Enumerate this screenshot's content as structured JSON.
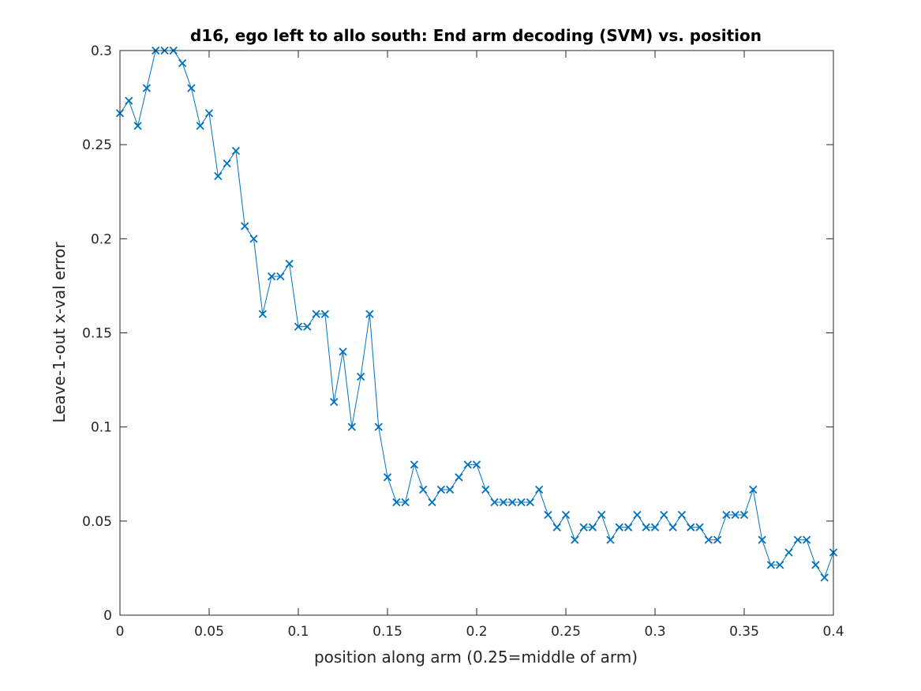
{
  "chart_data": {
    "type": "line",
    "title": "d16, ego left to allo south: End arm decoding (SVM) vs. position",
    "xlabel": "position along arm (0.25=middle of arm)",
    "ylabel": "Leave-1-out x-val error",
    "xlim": [
      0,
      0.4
    ],
    "ylim": [
      0,
      0.3
    ],
    "xticks": [
      0,
      0.05,
      0.1,
      0.15,
      0.2,
      0.25,
      0.3,
      0.35,
      0.4
    ],
    "xtick_labels": [
      "0",
      "0.05",
      "0.1",
      "0.15",
      "0.2",
      "0.25",
      "0.3",
      "0.35",
      "0.4"
    ],
    "yticks": [
      0,
      0.05,
      0.1,
      0.15,
      0.2,
      0.25,
      0.3
    ],
    "ytick_labels": [
      "0",
      "0.05",
      "0.1",
      "0.15",
      "0.2",
      "0.25",
      "0.3"
    ],
    "grid": false,
    "marker": "x",
    "color": "#0072BD",
    "series": [
      {
        "x": [
          0,
          0.005,
          0.01,
          0.015,
          0.02,
          0.025,
          0.03,
          0.035,
          0.04,
          0.045,
          0.05,
          0.055,
          0.06,
          0.065,
          0.07,
          0.075,
          0.08,
          0.085,
          0.09,
          0.095,
          0.1,
          0.105,
          0.11,
          0.115,
          0.12,
          0.125,
          0.13,
          0.135,
          0.14,
          0.145,
          0.15,
          0.155,
          0.16,
          0.165,
          0.17,
          0.175,
          0.18,
          0.185,
          0.19,
          0.195,
          0.2,
          0.205,
          0.21,
          0.215,
          0.22,
          0.225,
          0.23,
          0.235,
          0.24,
          0.245,
          0.25,
          0.255,
          0.26,
          0.265,
          0.27,
          0.275,
          0.28,
          0.285,
          0.29,
          0.295,
          0.3,
          0.305,
          0.31,
          0.315,
          0.32,
          0.325,
          0.33,
          0.335,
          0.34,
          0.345,
          0.35,
          0.355,
          0.36,
          0.365,
          0.37,
          0.375,
          0.38,
          0.385,
          0.39,
          0.395,
          0.4
        ],
        "y": [
          0.2667,
          0.2733,
          0.26,
          0.28,
          0.3,
          0.3,
          0.3,
          0.2933,
          0.28,
          0.26,
          0.2667,
          0.2333,
          0.24,
          0.2467,
          0.2067,
          0.2,
          0.16,
          0.18,
          0.18,
          0.1867,
          0.1533,
          0.1533,
          0.16,
          0.16,
          0.1133,
          0.14,
          0.1,
          0.1267,
          0.16,
          0.1,
          0.0733,
          0.06,
          0.06,
          0.08,
          0.0667,
          0.06,
          0.0667,
          0.0667,
          0.0733,
          0.08,
          0.08,
          0.0667,
          0.06,
          0.06,
          0.06,
          0.06,
          0.06,
          0.0667,
          0.0533,
          0.0467,
          0.0533,
          0.04,
          0.0467,
          0.0467,
          0.0533,
          0.04,
          0.0467,
          0.0467,
          0.0533,
          0.0467,
          0.0467,
          0.0533,
          0.0467,
          0.0533,
          0.0467,
          0.0467,
          0.04,
          0.04,
          0.0533,
          0.0533,
          0.0533,
          0.0667,
          0.04,
          0.0267,
          0.0267,
          0.0333,
          0.04,
          0.04,
          0.0267,
          0.02,
          0.0333
        ]
      }
    ]
  }
}
